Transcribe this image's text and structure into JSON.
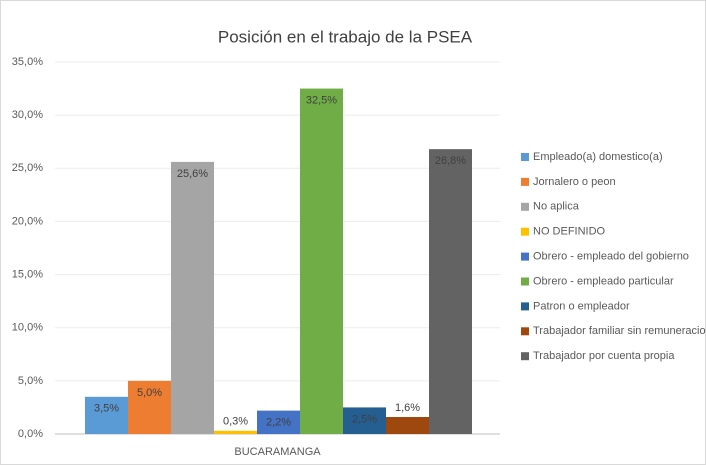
{
  "chart_data": {
    "type": "bar",
    "title": "Posición en el trabajo de la PSEA",
    "categories": [
      "BUCARAMANGA"
    ],
    "ylim": [
      0,
      35
    ],
    "yticks": [
      {
        "value": 0,
        "label": "0,0%"
      },
      {
        "value": 5,
        "label": "5,0%"
      },
      {
        "value": 10,
        "label": "10,0%"
      },
      {
        "value": 15,
        "label": "15,0%"
      },
      {
        "value": 20,
        "label": "20,0%"
      },
      {
        "value": 25,
        "label": "25,0%"
      },
      {
        "value": 30,
        "label": "30,0%"
      },
      {
        "value": 35,
        "label": "35,0%"
      }
    ],
    "grid": true,
    "legend": "right",
    "series": [
      {
        "name": "Empleado(a) domestico(a)",
        "color": "#5b9bd5",
        "values": [
          3.5
        ],
        "value_labels": [
          "3,5%"
        ]
      },
      {
        "name": "Jornalero o peon",
        "color": "#ed7d31",
        "values": [
          5.0
        ],
        "value_labels": [
          "5,0%"
        ]
      },
      {
        "name": "No aplica",
        "color": "#a5a5a5",
        "values": [
          25.6
        ],
        "value_labels": [
          "25,6%"
        ]
      },
      {
        "name": "NO DEFINIDO",
        "color": "#ffc000",
        "values": [
          0.3
        ],
        "value_labels": [
          "0,3%"
        ]
      },
      {
        "name": "Obrero - empleado del gobierno",
        "color": "#4472c4",
        "values": [
          2.2
        ],
        "value_labels": [
          "2,2%"
        ]
      },
      {
        "name": "Obrero - empleado particular",
        "color": "#70ad47",
        "values": [
          32.5
        ],
        "value_labels": [
          "32,5%"
        ]
      },
      {
        "name": "Patron o empleador",
        "color": "#255e91",
        "values": [
          2.5
        ],
        "value_labels": [
          "2,5%"
        ]
      },
      {
        "name": "Trabajador familiar sin remuneracion",
        "color": "#9e480e",
        "values": [
          1.6
        ],
        "value_labels": [
          "1,6%"
        ]
      },
      {
        "name": "Trabajador por cuenta propia",
        "color": "#636363",
        "values": [
          26.8
        ],
        "value_labels": [
          "26,8%"
        ]
      }
    ]
  }
}
